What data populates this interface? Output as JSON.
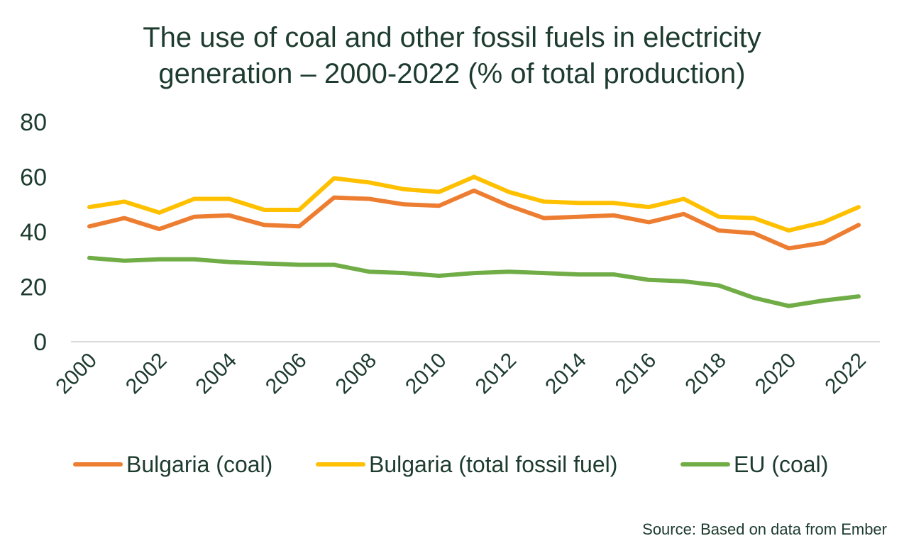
{
  "chart_data": {
    "type": "line",
    "title_lines": [
      "The use of coal and other fossil fuels in electricity",
      "generation – 2000-2022 (% of total production)"
    ],
    "x": [
      2000,
      2001,
      2002,
      2003,
      2004,
      2005,
      2006,
      2007,
      2008,
      2009,
      2010,
      2011,
      2012,
      2013,
      2014,
      2015,
      2016,
      2017,
      2018,
      2019,
      2020,
      2021,
      2022
    ],
    "x_tick_labels": [
      "2000",
      "2002",
      "2004",
      "2006",
      "2008",
      "2010",
      "2012",
      "2014",
      "2016",
      "2018",
      "2020",
      "2022"
    ],
    "y_tick_labels": [
      "0",
      "20",
      "40",
      "60",
      "80"
    ],
    "ylim": [
      0,
      80
    ],
    "grid": false,
    "legend_position": "bottom",
    "series": [
      {
        "name": "Bulgaria (coal)",
        "color": "#ed7d31",
        "values": [
          42,
          45,
          41,
          45.5,
          46,
          42.5,
          42,
          52.5,
          52,
          50,
          49.5,
          55,
          49.5,
          45,
          45.5,
          46,
          43.5,
          46.5,
          40.5,
          39.5,
          34,
          36,
          42.5
        ]
      },
      {
        "name": "Bulgaria (total fossil fuel)",
        "color": "#ffc000",
        "values": [
          49,
          51,
          47,
          52,
          52,
          48,
          48,
          59.5,
          58,
          55.5,
          54.5,
          60,
          54.5,
          51,
          50.5,
          50.5,
          49,
          52,
          45.5,
          45,
          40.5,
          43.5,
          49
        ]
      },
      {
        "name": "EU (coal)",
        "color": "#70ad47",
        "values": [
          30.5,
          29.5,
          30,
          30,
          29,
          28.5,
          28,
          28,
          25.5,
          25,
          24,
          25,
          25.5,
          25,
          24.5,
          24.5,
          22.5,
          22,
          20.5,
          16,
          13,
          15,
          16.5
        ]
      }
    ]
  },
  "source": "Source: Based on data from Ember"
}
